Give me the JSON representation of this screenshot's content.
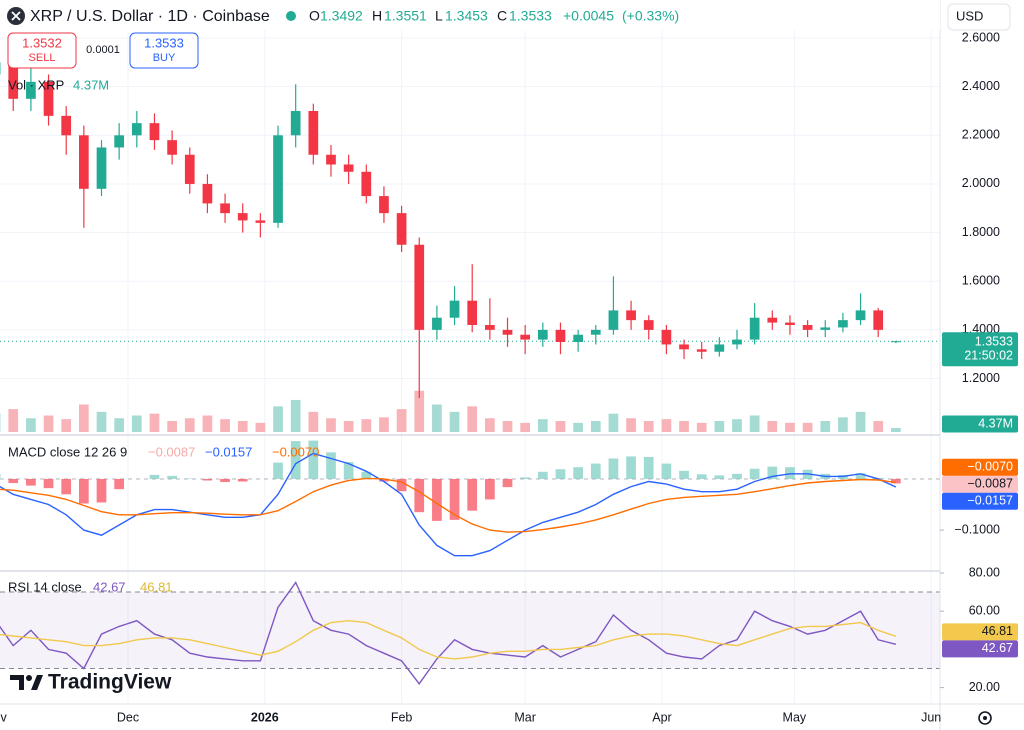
{
  "header": {
    "title": "XRP / U.S. Dollar · 1D · Coinbase",
    "open_label": "O",
    "high_label": "H",
    "low_label": "L",
    "close_label": "C",
    "change": {
      "value": 0.0045,
      "label": "+0.0045"
    },
    "change_pct": {
      "value": 0.33,
      "label": "(+0.33%)"
    },
    "currency": "USD"
  },
  "order": {
    "sell_price": 1.3532,
    "sell_label": "SELL",
    "spread": 0.0001,
    "buy_price": 1.3533,
    "buy_label": "BUY"
  },
  "branding": "TradingView",
  "chart_data": [
    {
      "type": "candlestick",
      "x": [
        0,
        4,
        8,
        12,
        16,
        20,
        24,
        28,
        32,
        36,
        40,
        44,
        48,
        52,
        56,
        60,
        64,
        68,
        72,
        76,
        80,
        84,
        88,
        92,
        96,
        100,
        104,
        108,
        112,
        116,
        120,
        124,
        128,
        132,
        136,
        140,
        144,
        148,
        152,
        156,
        160,
        164,
        168,
        172,
        176,
        180,
        184,
        188,
        192,
        196,
        200,
        204
      ],
      "xlim": [
        1,
        214
      ],
      "xticks": [
        {
          "value": 0,
          "label": "Nov"
        },
        {
          "value": 30,
          "label": "Dec"
        },
        {
          "value": 61,
          "label": "2026"
        },
        {
          "value": 92,
          "label": "Feb"
        },
        {
          "value": 120,
          "label": "Mar"
        },
        {
          "value": 151,
          "label": "Apr"
        },
        {
          "value": 181,
          "label": "May"
        },
        {
          "value": 212,
          "label": "Jun"
        }
      ],
      "open": [
        2.45,
        2.5,
        2.35,
        2.42,
        2.28,
        2.2,
        1.98,
        2.15,
        2.2,
        2.25,
        2.18,
        2.12,
        2.0,
        1.92,
        1.88,
        1.85,
        1.84,
        2.2,
        2.3,
        2.12,
        2.08,
        2.05,
        1.95,
        1.88,
        1.75,
        1.4,
        1.45,
        1.52,
        1.42,
        1.4,
        1.38,
        1.36,
        1.4,
        1.35,
        1.38,
        1.4,
        1.48,
        1.44,
        1.4,
        1.34,
        1.32,
        1.31,
        1.34,
        1.36,
        1.45,
        1.43,
        1.42,
        1.4,
        1.41,
        1.44,
        1.48,
        1.3492
      ],
      "high": [
        2.56,
        2.55,
        2.48,
        2.45,
        2.32,
        2.24,
        2.18,
        2.25,
        2.3,
        2.29,
        2.22,
        2.15,
        2.04,
        1.96,
        1.92,
        1.88,
        2.24,
        2.41,
        2.33,
        2.16,
        2.12,
        2.08,
        1.99,
        1.91,
        1.78,
        1.5,
        1.58,
        1.67,
        1.53,
        1.45,
        1.42,
        1.43,
        1.43,
        1.4,
        1.42,
        1.62,
        1.52,
        1.46,
        1.42,
        1.36,
        1.35,
        1.37,
        1.4,
        1.51,
        1.48,
        1.46,
        1.44,
        1.44,
        1.47,
        1.55,
        1.49,
        1.3551
      ],
      "low": [
        2.4,
        2.3,
        2.3,
        2.24,
        2.12,
        1.82,
        1.95,
        2.1,
        2.15,
        2.14,
        2.08,
        1.96,
        1.88,
        1.84,
        1.8,
        1.78,
        1.82,
        2.15,
        2.08,
        2.03,
        2.0,
        1.92,
        1.84,
        1.72,
        1.12,
        1.36,
        1.42,
        1.39,
        1.36,
        1.33,
        1.3,
        1.33,
        1.3,
        1.31,
        1.34,
        1.38,
        1.4,
        1.36,
        1.3,
        1.28,
        1.28,
        1.29,
        1.32,
        1.34,
        1.4,
        1.38,
        1.37,
        1.37,
        1.39,
        1.42,
        1.37,
        1.3453
      ],
      "close": [
        2.5,
        2.35,
        2.42,
        2.28,
        2.2,
        1.98,
        2.15,
        2.2,
        2.25,
        2.18,
        2.12,
        2.0,
        1.92,
        1.88,
        1.85,
        1.84,
        2.2,
        2.3,
        2.12,
        2.08,
        2.05,
        1.95,
        1.88,
        1.75,
        1.4,
        1.45,
        1.52,
        1.42,
        1.4,
        1.38,
        1.36,
        1.4,
        1.35,
        1.38,
        1.4,
        1.48,
        1.44,
        1.4,
        1.34,
        1.32,
        1.31,
        1.34,
        1.36,
        1.45,
        1.43,
        1.42,
        1.4,
        1.41,
        1.44,
        1.48,
        1.4,
        1.3533
      ],
      "up_color": "#22ab94",
      "down_color": "#f23645",
      "ylim": [
        0.98,
        2.633
      ],
      "yticks": [
        {
          "value": 1.2,
          "label": "1.2000"
        },
        {
          "value": 1.4,
          "label": "1.4000"
        },
        {
          "value": 1.6,
          "label": "1.6000"
        },
        {
          "value": 1.8,
          "label": "1.8000"
        },
        {
          "value": 2.0,
          "label": "2.0000"
        },
        {
          "value": 2.2,
          "label": "2.2000"
        },
        {
          "value": 2.4,
          "label": "2.4000"
        },
        {
          "value": 2.6,
          "label": "2.6000"
        }
      ],
      "grid": true,
      "countdown": "21:50:02"
    },
    {
      "type": "bar",
      "title": "Vol · XRP",
      "values": [
        20000000,
        25000000,
        15000000,
        18000000,
        14000000,
        30000000,
        22000000,
        15000000,
        18000000,
        20000000,
        12000000,
        15000000,
        18000000,
        14000000,
        12000000,
        10000000,
        28000000,
        35000000,
        22000000,
        15000000,
        12000000,
        14000000,
        16000000,
        25000000,
        45000000,
        30000000,
        22000000,
        28000000,
        15000000,
        12000000,
        10000000,
        14000000,
        12000000,
        10000000,
        12000000,
        20000000,
        15000000,
        12000000,
        14000000,
        12000000,
        10000000,
        12000000,
        14000000,
        18000000,
        12000000,
        10000000,
        10000000,
        12000000,
        16000000,
        22000000,
        12000000,
        4370000
      ],
      "value_labels": {
        "51": "4.37M"
      },
      "up_color": "#a6dbd3",
      "down_color": "#f7b3b8",
      "label_color": "#22ab94",
      "ylim": [
        0,
        120000000
      ]
    },
    {
      "type": "line",
      "title": "MACD close 12 26 9",
      "series": [
        {
          "style": "histogram",
          "up_color": "#7fcfc3",
          "down_color": "#f7525f",
          "values": [
            0.01,
            -0.008,
            -0.013,
            -0.018,
            -0.03,
            -0.048,
            -0.046,
            -0.02,
            0,
            0.008,
            0.006,
            0.001,
            -0.003,
            -0.006,
            -0.005,
            0,
            0.032,
            0.074,
            0.075,
            0.052,
            0.033,
            0.014,
            -0.005,
            -0.024,
            -0.065,
            -0.082,
            -0.08,
            -0.062,
            -0.04,
            -0.016,
            0.003,
            0.014,
            0.019,
            0.023,
            0.03,
            0.04,
            0.044,
            0.043,
            0.03,
            0.016,
            0.009,
            0.007,
            0.01,
            0.02,
            0.024,
            0.023,
            0.018,
            0.01,
            0.008,
            0.011,
            0.002,
            -0.0087
          ],
          "value_labels": {
            "51": "−0.0087"
          }
        },
        {
          "style": "line",
          "color": "#2962ff",
          "values": [
            -0.01,
            -0.03,
            -0.04,
            -0.05,
            -0.07,
            -0.1,
            -0.11,
            -0.09,
            -0.07,
            -0.06,
            -0.06,
            -0.065,
            -0.07,
            -0.075,
            -0.075,
            -0.07,
            -0.03,
            0.03,
            0.05,
            0.04,
            0.03,
            0.015,
            -0.005,
            -0.03,
            -0.09,
            -0.13,
            -0.15,
            -0.15,
            -0.14,
            -0.12,
            -0.1,
            -0.085,
            -0.075,
            -0.065,
            -0.05,
            -0.03,
            -0.015,
            -0.005,
            -0.01,
            -0.02,
            -0.025,
            -0.025,
            -0.02,
            -0.005,
            0.005,
            0.01,
            0.01,
            0.005,
            0.005,
            0.01,
            0,
            -0.0157
          ],
          "value_labels": {
            "51": "−0.0157"
          }
        },
        {
          "style": "line",
          "color": "#ff6d00",
          "values": [
            -0.02,
            -0.022,
            -0.027,
            -0.032,
            -0.04,
            -0.052,
            -0.064,
            -0.07,
            -0.07,
            -0.068,
            -0.066,
            -0.066,
            -0.067,
            -0.069,
            -0.07,
            -0.07,
            -0.062,
            -0.044,
            -0.025,
            -0.012,
            -0.003,
            0.001,
            0,
            -0.006,
            -0.025,
            -0.048,
            -0.07,
            -0.088,
            -0.1,
            -0.104,
            -0.103,
            -0.099,
            -0.094,
            -0.088,
            -0.08,
            -0.07,
            -0.059,
            -0.048,
            -0.04,
            -0.036,
            -0.034,
            -0.032,
            -0.03,
            -0.025,
            -0.019,
            -0.013,
            -0.008,
            -0.005,
            -0.003,
            -0.001,
            -0.002,
            -0.007
          ],
          "value_labels": {
            "51": "−0.0070"
          }
        }
      ],
      "ylim": [
        -0.178,
        0.082
      ],
      "yticks": [
        {
          "value": -0.1,
          "label": "−0.1000"
        }
      ]
    },
    {
      "type": "line",
      "title": "RSI 14 close",
      "series": [
        {
          "style": "line",
          "color": "#7e57c2",
          "values": [
            55,
            42,
            50,
            40,
            38,
            30,
            48,
            52,
            55,
            48,
            45,
            38,
            36,
            35,
            34,
            34,
            62,
            75,
            55,
            50,
            48,
            42,
            38,
            34,
            22,
            35,
            45,
            40,
            38,
            37,
            36,
            42,
            36,
            40,
            44,
            58,
            50,
            45,
            38,
            36,
            35,
            42,
            45,
            60,
            55,
            52,
            48,
            50,
            55,
            60,
            45,
            42.67
          ]
        },
        {
          "style": "line",
          "color": "#f2c94c",
          "values": [
            48,
            47,
            46,
            45,
            44,
            42,
            42,
            43,
            45,
            46,
            46,
            45,
            43,
            41,
            39,
            37,
            39,
            44,
            50,
            54,
            55,
            54,
            50,
            46,
            40,
            36,
            35,
            36,
            38,
            39,
            39,
            40,
            40,
            41,
            42,
            45,
            47,
            48,
            48,
            47,
            45,
            43,
            42,
            45,
            48,
            51,
            52,
            52,
            53,
            54,
            50,
            46.81
          ]
        }
      ],
      "bands": [
        70,
        30
      ],
      "band_color": "#7e57c2",
      "ylim": [
        13.5,
        80.5
      ],
      "yticks": [
        {
          "value": 20,
          "label": "20.00"
        },
        {
          "value": 60,
          "label": "60.00"
        },
        {
          "value": 80,
          "label": "80.00"
        }
      ]
    }
  ]
}
